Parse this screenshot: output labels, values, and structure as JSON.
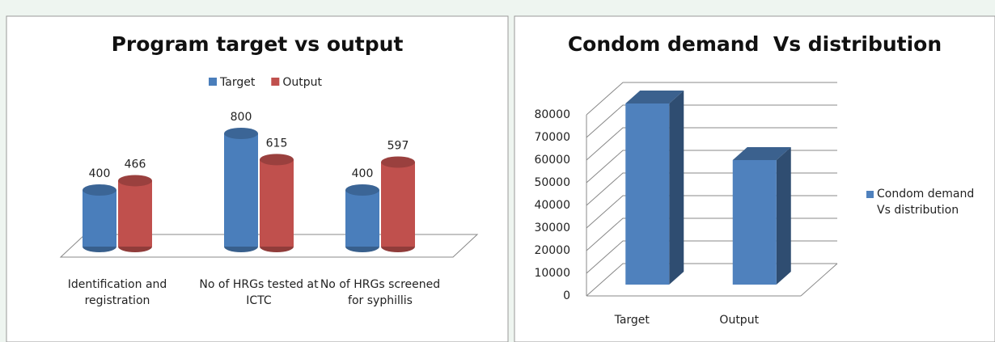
{
  "chart_data": [
    {
      "type": "cylinder",
      "title": "Program target vs output",
      "categories": [
        "Identification and registration",
        "No of HRGs tested at ICTC",
        "No of HRGs screened for syphillis"
      ],
      "series": [
        {
          "name": "Target",
          "color": "#4a7ebb",
          "values": [
            400,
            800,
            400
          ]
        },
        {
          "name": "Output",
          "color": "#c0504d",
          "values": [
            466,
            615,
            597
          ]
        }
      ]
    },
    {
      "type": "bar3d",
      "title": "Condom demand  Vs distribution",
      "categories": [
        "Target",
        "Output"
      ],
      "series": [
        {
          "name": "Condom demand  Vs distribution",
          "color": "#4f81bd",
          "values": [
            80000,
            55000
          ]
        }
      ],
      "ylim": [
        0,
        80000
      ],
      "yticks": [
        0,
        10000,
        20000,
        30000,
        40000,
        50000,
        60000,
        70000,
        80000
      ],
      "legend": "right"
    }
  ]
}
